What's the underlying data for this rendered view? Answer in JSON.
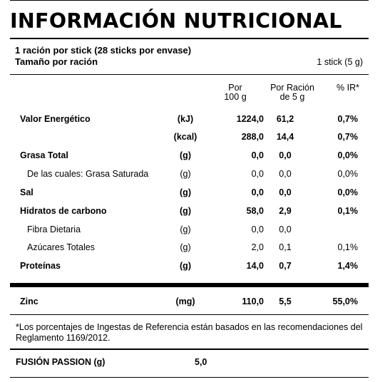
{
  "title": "INFORMACIÓN NUTRICIONAL",
  "serving": {
    "line1": "1 ración por stick (28 sticks por envase)",
    "line2": "Tamaño por ración",
    "size": "1 stick (5 g)"
  },
  "columns": {
    "per100_l1": "Por",
    "per100_l2": "100 g",
    "perServing_l1": "Por Ración",
    "perServing_l2": "de 5 g",
    "ir": "% IR*"
  },
  "rows": [
    {
      "name": "Valor Energético",
      "unit": "(kJ)",
      "per100": "1224,0",
      "perServing": "61,2",
      "ir": "0,7%"
    },
    {
      "name": "",
      "unit": "(kcal)",
      "per100": "288,0",
      "perServing": "14,4",
      "ir": "0,7%"
    },
    {
      "name": "Grasa Total",
      "unit": "(g)",
      "per100": "0,0",
      "perServing": "0,0",
      "ir": "0,0%"
    },
    {
      "name": "De las cuales: Grasa Saturada",
      "unit": "(g)",
      "per100": "0,0",
      "perServing": "0,0",
      "ir": "0,0%"
    },
    {
      "name": "Sal",
      "unit": "(g)",
      "per100": "0,0",
      "perServing": "0,0",
      "ir": "0,0%"
    },
    {
      "name": "Hidratos de carbono",
      "unit": "(g)",
      "per100": "58,0",
      "perServing": "2,9",
      "ir": "0,1%"
    },
    {
      "name": "Fibra Dietaria",
      "unit": "(g)",
      "per100": "0,0",
      "perServing": "0,0",
      "ir": ""
    },
    {
      "name": "Azúcares Totales",
      "unit": "(g)",
      "per100": "2,0",
      "perServing": "0,1",
      "ir": "0,1%"
    },
    {
      "name": "Proteínas",
      "unit": "(g)",
      "per100": "14,0",
      "perServing": "0,7",
      "ir": "1,4%"
    },
    {
      "name": "Zinc",
      "unit": "(mg)",
      "per100": "110,0",
      "perServing": "5,5",
      "ir": "55,0%"
    }
  ],
  "footnote": "*Los porcentajes de Ingestas de Referencia están basados en las recomendaciones del Reglamento 1169/2012.",
  "fusion": {
    "name": "FUSIÓN PASSION (g)",
    "value": "5,0"
  }
}
